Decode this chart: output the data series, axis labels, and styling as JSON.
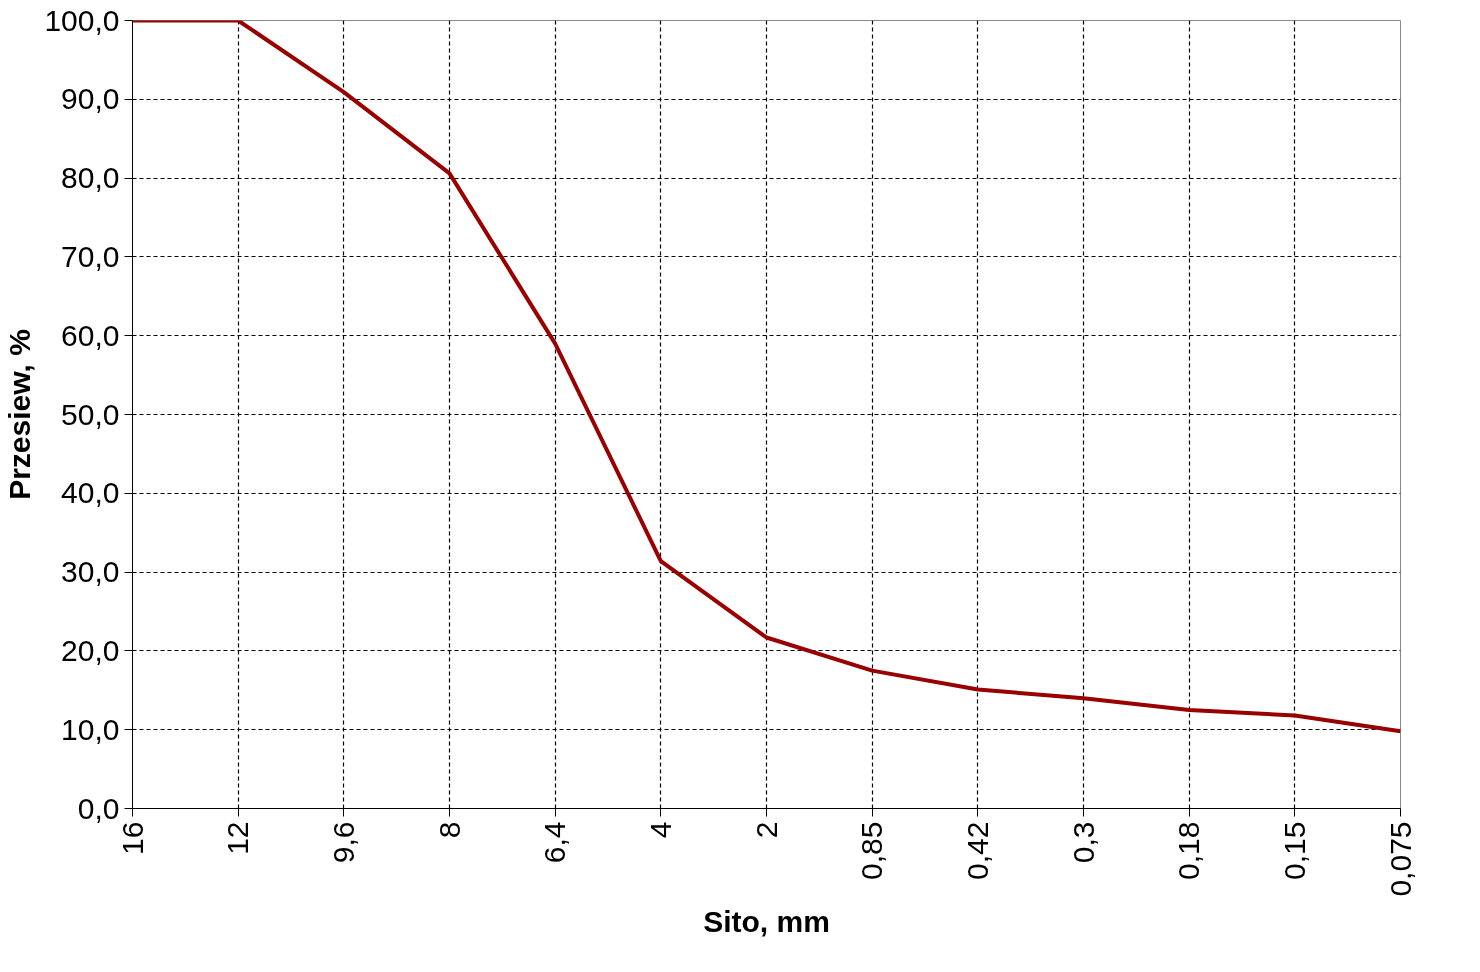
{
  "chart_data": {
    "type": "line",
    "xlabel": "Sito, mm",
    "ylabel": "Przesiew, %",
    "categories": [
      "16",
      "12",
      "9,6",
      "8",
      "6,4",
      "4",
      "2",
      "0,85",
      "0,42",
      "0,3",
      "0,18",
      "0,15",
      "0,075"
    ],
    "series": [
      {
        "color": "#990000",
        "values": [
          100,
          100,
          90.9,
          80.6,
          59.0,
          31.4,
          21.7,
          17.5,
          15.1,
          14.0,
          12.5,
          11.8,
          9.8
        ]
      }
    ],
    "ylim": [
      0,
      100
    ],
    "yticks": [
      {
        "value": 0,
        "label": "0,0"
      },
      {
        "value": 10,
        "label": "10,0"
      },
      {
        "value": 20,
        "label": "20,0"
      },
      {
        "value": 30,
        "label": "30,0"
      },
      {
        "value": 40,
        "label": "40,0"
      },
      {
        "value": 50,
        "label": "50,0"
      },
      {
        "value": 60,
        "label": "60,0"
      },
      {
        "value": 70,
        "label": "70,0"
      },
      {
        "value": 80,
        "label": "80,0"
      },
      {
        "value": 90,
        "label": "90,0"
      },
      {
        "value": 100,
        "label": "100,0"
      }
    ],
    "grid": true
  }
}
